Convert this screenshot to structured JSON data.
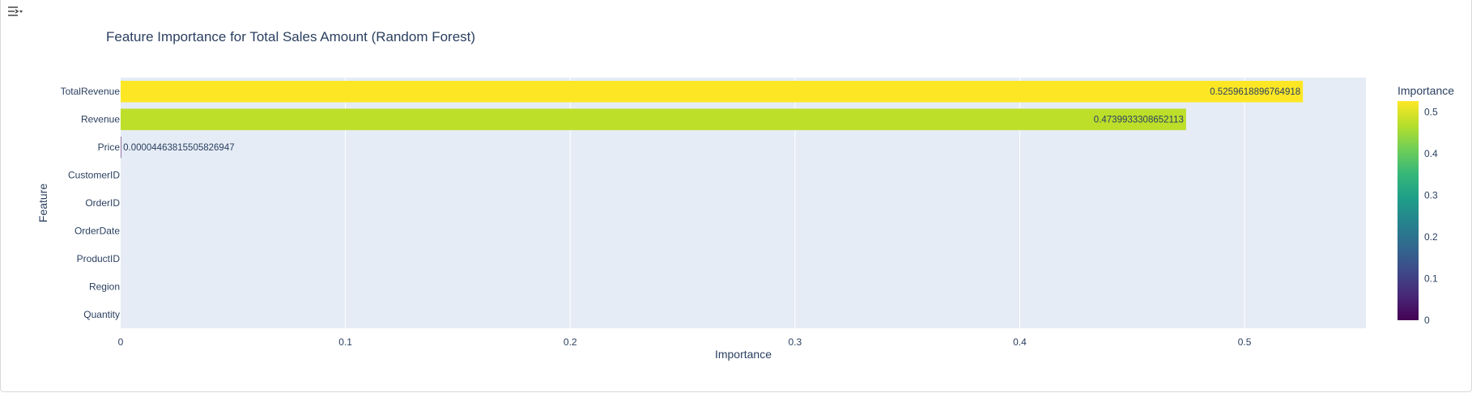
{
  "toolbar": {
    "icon": "chart-options-icon"
  },
  "chart_data": {
    "type": "bar",
    "orientation": "horizontal",
    "title": "Feature Importance for Total Sales Amount (Random Forest)",
    "xlabel": "Importance",
    "ylabel": "Feature",
    "categories": [
      "TotalRevenue",
      "Revenue",
      "Price",
      "CustomerID",
      "OrderID",
      "OrderDate",
      "ProductID",
      "Region",
      "Quantity"
    ],
    "values": [
      0.5259618896764918,
      0.4739933308652113,
      4.463815505826947e-05,
      0,
      0,
      0,
      0,
      0,
      0
    ],
    "value_labels": [
      "0.5259618896764918",
      "0.4739933308652113",
      "0.00004463815505826947",
      "",
      "",
      "",
      "",
      "",
      ""
    ],
    "xlim": [
      0,
      0.554
    ],
    "x_ticks": [
      0,
      0.1,
      0.2,
      0.3,
      0.4,
      0.5
    ],
    "x_tick_labels": [
      "0",
      "0.1",
      "0.2",
      "0.3",
      "0.4",
      "0.5"
    ],
    "grid": true,
    "colorscale": "Viridis",
    "colorbar": {
      "title": "Importance",
      "range": [
        0,
        0.526
      ],
      "ticks": [
        0,
        0.1,
        0.2,
        0.3,
        0.4,
        0.5
      ],
      "tick_labels": [
        "0",
        "0.1",
        "0.2",
        "0.3",
        "0.4",
        "0.5"
      ],
      "colors": [
        "#440154",
        "#482878",
        "#3e4989",
        "#31688e",
        "#26828e",
        "#1f9e89",
        "#35b779",
        "#6ece58",
        "#b5de2b",
        "#fde725"
      ]
    },
    "plot_background": "#e5ecf6",
    "text_color": "#2a3f5f"
  }
}
